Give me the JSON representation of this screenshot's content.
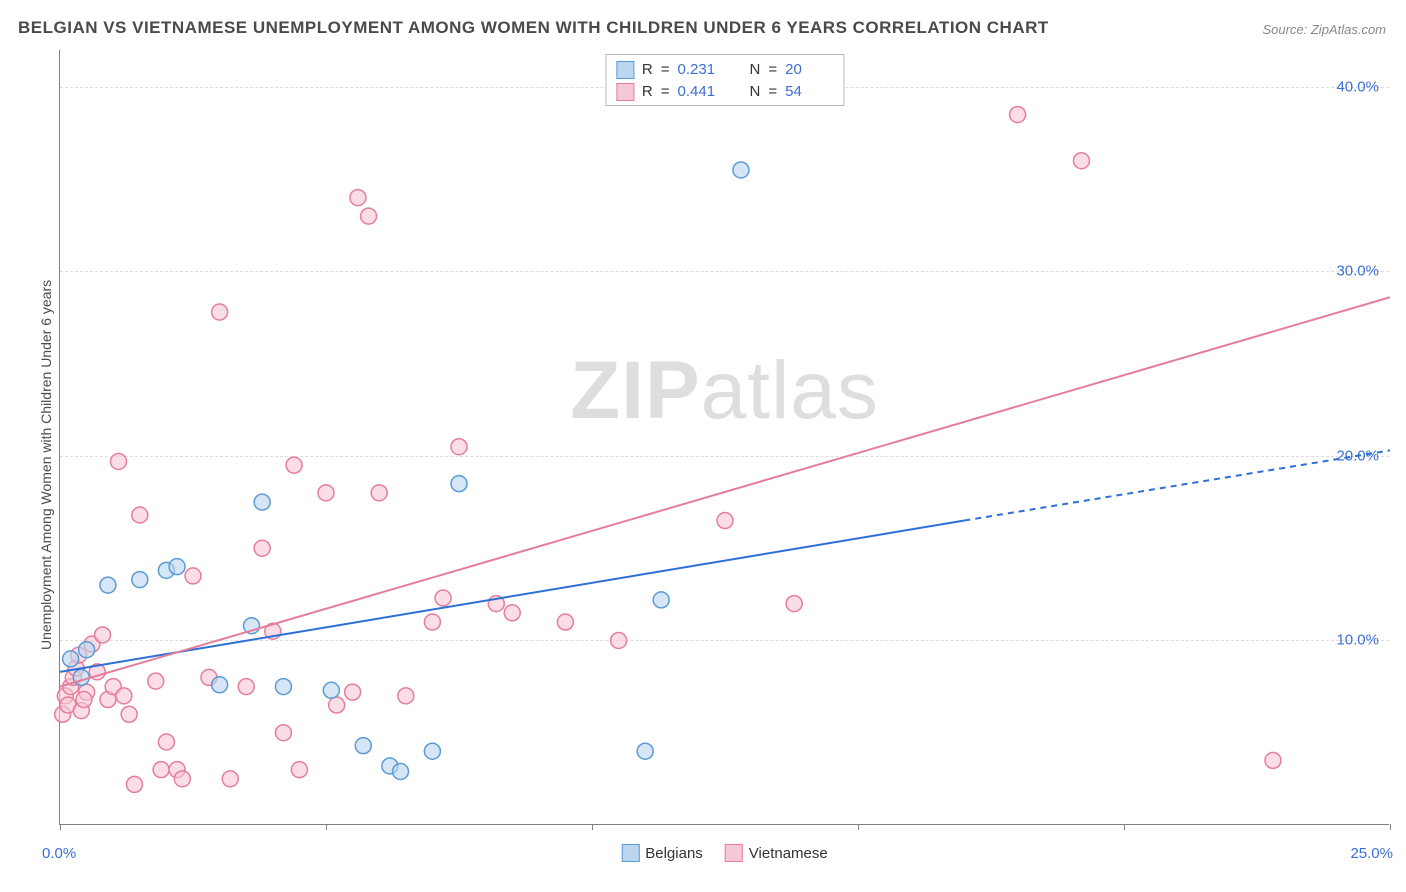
{
  "title": "BELGIAN VS VIETNAMESE UNEMPLOYMENT AMONG WOMEN WITH CHILDREN UNDER 6 YEARS CORRELATION CHART",
  "source": "Source: ZipAtlas.com",
  "y_axis_label": "Unemployment Among Women with Children Under 6 years",
  "watermark_a": "ZIP",
  "watermark_b": "atlas",
  "chart": {
    "type": "scatter",
    "background_color": "#ffffff",
    "grid_color": "#dddddd",
    "axis_color": "#808080",
    "label_color": "#3b6fd4",
    "xlim": [
      0,
      25
    ],
    "ylim": [
      0,
      42
    ],
    "x_ticks": [
      0,
      5,
      10,
      15,
      20,
      25
    ],
    "x_tick_labels": {
      "0": "0.0%",
      "25": "25.0%"
    },
    "y_gridlines": [
      10,
      20,
      30,
      40
    ],
    "y_tick_labels": {
      "10": "10.0%",
      "20": "20.0%",
      "30": "30.0%",
      "40": "40.0%"
    },
    "marker_radius": 8,
    "marker_stroke_width": 1.5,
    "marker_fill_opacity": 0.25,
    "series": [
      {
        "name": "Belgians",
        "color": "#5a9bd5",
        "fill": "#bcd6f0",
        "R": "0.231",
        "N": "20",
        "trend": {
          "x1": 0,
          "y1": 8.3,
          "x2_solid": 17,
          "y2_solid": 16.5,
          "x2": 25,
          "y2": 20.3,
          "dashed_tail": true,
          "width": 2
        },
        "points": [
          {
            "x": 0.2,
            "y": 9.0
          },
          {
            "x": 0.4,
            "y": 8.0
          },
          {
            "x": 0.5,
            "y": 9.5
          },
          {
            "x": 1.5,
            "y": 13.3
          },
          {
            "x": 2.0,
            "y": 13.8
          },
          {
            "x": 2.2,
            "y": 14.0
          },
          {
            "x": 3.8,
            "y": 17.5
          },
          {
            "x": 3.6,
            "y": 10.8
          },
          {
            "x": 3.0,
            "y": 7.6
          },
          {
            "x": 4.2,
            "y": 7.5
          },
          {
            "x": 5.1,
            "y": 7.3
          },
          {
            "x": 5.7,
            "y": 4.3
          },
          {
            "x": 6.2,
            "y": 3.2
          },
          {
            "x": 6.4,
            "y": 2.9
          },
          {
            "x": 7.0,
            "y": 4.0
          },
          {
            "x": 7.5,
            "y": 18.5
          },
          {
            "x": 11.0,
            "y": 4.0
          },
          {
            "x": 11.3,
            "y": 12.2
          },
          {
            "x": 12.8,
            "y": 35.5
          },
          {
            "x": 0.9,
            "y": 13.0
          }
        ]
      },
      {
        "name": "Vietnamese",
        "color": "#e57e9b",
        "fill": "#f6c7d4",
        "R": "0.441",
        "N": "54",
        "trend": {
          "x1": 0,
          "y1": 7.5,
          "x2": 25,
          "y2": 28.6,
          "dashed_tail": false,
          "width": 2
        },
        "points": [
          {
            "x": 0.05,
            "y": 6.0
          },
          {
            "x": 0.1,
            "y": 7.0
          },
          {
            "x": 0.15,
            "y": 6.5
          },
          {
            "x": 0.2,
            "y": 7.5
          },
          {
            "x": 0.25,
            "y": 8.0
          },
          {
            "x": 0.3,
            "y": 8.5
          },
          {
            "x": 0.35,
            "y": 9.2
          },
          {
            "x": 0.4,
            "y": 6.2
          },
          {
            "x": 0.5,
            "y": 7.2
          },
          {
            "x": 0.6,
            "y": 9.8
          },
          {
            "x": 0.7,
            "y": 8.3
          },
          {
            "x": 0.8,
            "y": 10.3
          },
          {
            "x": 0.9,
            "y": 6.8
          },
          {
            "x": 1.0,
            "y": 7.5
          },
          {
            "x": 1.1,
            "y": 19.7
          },
          {
            "x": 1.2,
            "y": 7.0
          },
          {
            "x": 1.4,
            "y": 2.2
          },
          {
            "x": 1.5,
            "y": 16.8
          },
          {
            "x": 1.8,
            "y": 7.8
          },
          {
            "x": 1.9,
            "y": 3.0
          },
          {
            "x": 2.0,
            "y": 4.5
          },
          {
            "x": 2.2,
            "y": 3.0
          },
          {
            "x": 2.5,
            "y": 13.5
          },
          {
            "x": 2.8,
            "y": 8.0
          },
          {
            "x": 3.0,
            "y": 27.8
          },
          {
            "x": 3.2,
            "y": 2.5
          },
          {
            "x": 3.5,
            "y": 7.5
          },
          {
            "x": 3.8,
            "y": 15.0
          },
          {
            "x": 4.0,
            "y": 10.5
          },
          {
            "x": 4.2,
            "y": 5.0
          },
          {
            "x": 4.4,
            "y": 19.5
          },
          {
            "x": 4.5,
            "y": 3.0
          },
          {
            "x": 5.0,
            "y": 18.0
          },
          {
            "x": 5.2,
            "y": 6.5
          },
          {
            "x": 5.5,
            "y": 7.2
          },
          {
            "x": 5.6,
            "y": 34.0
          },
          {
            "x": 5.8,
            "y": 33.0
          },
          {
            "x": 6.0,
            "y": 18.0
          },
          {
            "x": 6.5,
            "y": 7.0
          },
          {
            "x": 7.0,
            "y": 11.0
          },
          {
            "x": 7.2,
            "y": 12.3
          },
          {
            "x": 7.5,
            "y": 20.5
          },
          {
            "x": 8.2,
            "y": 12.0
          },
          {
            "x": 8.5,
            "y": 11.5
          },
          {
            "x": 9.5,
            "y": 11.0
          },
          {
            "x": 10.5,
            "y": 10.0
          },
          {
            "x": 12.5,
            "y": 16.5
          },
          {
            "x": 13.8,
            "y": 12.0
          },
          {
            "x": 18.0,
            "y": 38.5
          },
          {
            "x": 19.2,
            "y": 36.0
          },
          {
            "x": 22.8,
            "y": 3.5
          },
          {
            "x": 1.3,
            "y": 6.0
          },
          {
            "x": 0.45,
            "y": 6.8
          },
          {
            "x": 2.3,
            "y": 2.5
          }
        ]
      }
    ],
    "legend_top": {
      "r_label": "R",
      "n_label": "N",
      "eq": "="
    },
    "legend_bottom": [
      {
        "label": "Belgians",
        "color": "#5a9bd5",
        "fill": "#bcd6f0"
      },
      {
        "label": "Vietnamese",
        "color": "#e57e9b",
        "fill": "#f6c7d4"
      }
    ]
  }
}
